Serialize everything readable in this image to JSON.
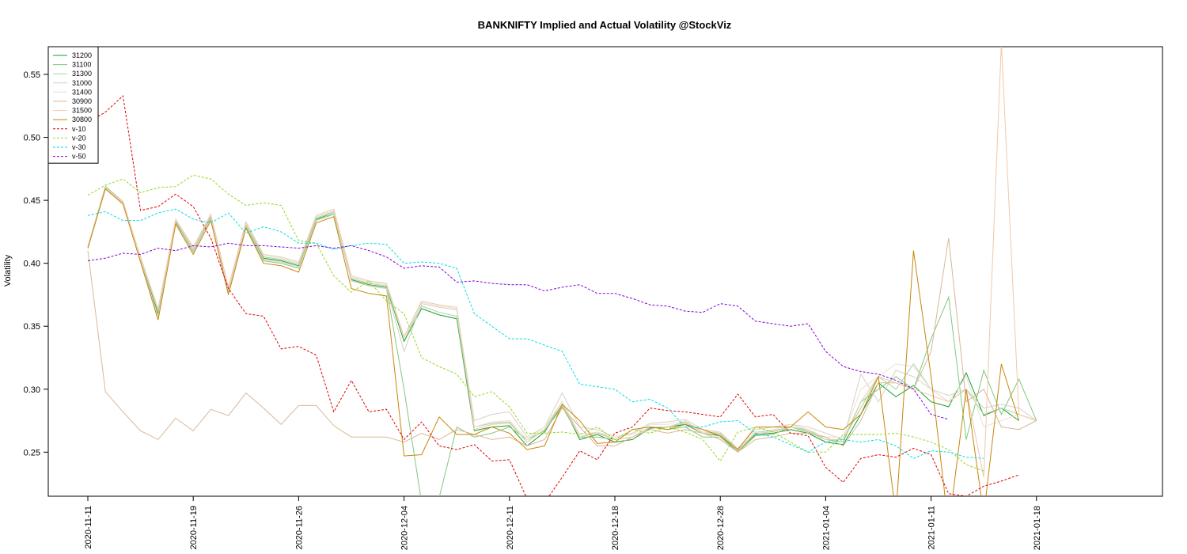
{
  "chart_data": {
    "type": "line",
    "title": "BANKNIFTY Implied and Actual Volatility @StockViz",
    "xlabel": "",
    "ylabel": "Volatility",
    "ylim": [
      0.215,
      0.572
    ],
    "yticks": [
      0.25,
      0.3,
      0.35,
      0.4,
      0.45,
      0.5,
      0.55
    ],
    "ytick_labels": [
      "0.25",
      "0.30",
      "0.35",
      "0.40",
      "0.45",
      "0.50",
      "0.55"
    ],
    "grid": false,
    "legend_position": "top-left",
    "xtick_labels": [
      {
        "label": "2020-11-11",
        "index": 0
      },
      {
        "label": "2020-11-19",
        "index": 6
      },
      {
        "label": "2020-11-26",
        "index": 12
      },
      {
        "label": "2020-12-04",
        "index": 18
      },
      {
        "label": "2020-12-11",
        "index": 24
      },
      {
        "label": "2020-12-18",
        "index": 30
      },
      {
        "label": "2020-12-28",
        "index": 36
      },
      {
        "label": "2021-01-04",
        "index": 42
      },
      {
        "label": "2021-01-11",
        "index": 48
      },
      {
        "label": "2021-01-18",
        "index": 54
      }
    ],
    "n_points": 60,
    "series": [
      {
        "name": "31200",
        "color": "#1a9e2c",
        "dash": "solid",
        "values": [
          0.413,
          0.461,
          0.449,
          0.403,
          0.36,
          0.433,
          0.41,
          0.437,
          0.378,
          0.43,
          0.404,
          0.402,
          0.398,
          0.435,
          0.44,
          0.387,
          0.383,
          0.381,
          0.338,
          0.364,
          0.359,
          0.356,
          0.267,
          0.27,
          0.271,
          0.255,
          0.266,
          0.288,
          0.26,
          0.264,
          0.258,
          0.26,
          0.269,
          0.27,
          0.272,
          0.265,
          0.263,
          0.251,
          0.264,
          0.265,
          0.268,
          0.265,
          0.258,
          0.256,
          0.28,
          0.305,
          0.294,
          0.303,
          0.29,
          0.286,
          0.313,
          0.279,
          0.285,
          0.275
        ]
      },
      {
        "name": "31100",
        "color": "#7fc97f",
        "dash": "solid",
        "values": [
          0.412,
          0.46,
          0.448,
          0.402,
          0.358,
          0.432,
          0.409,
          0.436,
          0.377,
          0.429,
          0.402,
          0.4,
          0.396,
          0.434,
          0.439,
          0.386,
          0.382,
          0.38,
          0.3,
          0.21,
          0.214,
          0.27,
          0.262,
          0.265,
          0.27,
          0.26,
          0.267,
          0.286,
          0.262,
          0.262,
          0.26,
          0.262,
          0.27,
          0.268,
          0.27,
          0.262,
          0.262,
          0.25,
          0.263,
          0.264,
          0.27,
          0.266,
          0.26,
          0.258,
          0.29,
          0.3,
          0.31,
          0.3,
          0.34,
          0.373,
          0.26,
          0.315,
          0.28,
          0.308,
          0.275
        ]
      },
      {
        "name": "31300",
        "color": "#a6d4a0",
        "dash": "solid",
        "values": [
          0.413,
          0.461,
          0.449,
          0.404,
          0.362,
          0.434,
          0.411,
          0.438,
          0.379,
          0.431,
          0.405,
          0.403,
          0.399,
          0.436,
          0.441,
          0.388,
          0.384,
          0.382,
          0.34,
          0.366,
          0.361,
          0.358,
          0.27,
          0.273,
          0.274,
          0.258,
          0.268,
          0.29,
          0.262,
          0.266,
          0.26,
          0.262,
          0.27,
          0.27,
          0.274,
          0.266,
          0.265,
          0.252,
          0.266,
          0.267,
          0.27,
          0.268,
          0.26,
          0.26,
          0.285,
          0.31,
          0.3,
          0.32,
          0.3,
          0.29,
          0.3,
          0.28,
          0.285,
          0.28,
          0.275
        ]
      },
      {
        "name": "31000",
        "color": "#d9d0c4",
        "dash": "solid",
        "values": [
          0.412,
          0.46,
          0.448,
          0.402,
          0.358,
          0.432,
          0.41,
          0.436,
          0.377,
          0.43,
          0.403,
          0.401,
          0.397,
          0.434,
          0.44,
          0.386,
          0.382,
          0.38,
          0.33,
          0.368,
          0.365,
          0.363,
          0.275,
          0.28,
          0.282,
          0.262,
          0.27,
          0.297,
          0.27,
          0.268,
          0.262,
          0.265,
          0.273,
          0.274,
          0.276,
          0.268,
          0.266,
          0.253,
          0.268,
          0.27,
          0.272,
          0.27,
          0.265,
          0.26,
          0.312,
          0.29,
          0.315,
          0.31,
          0.3,
          0.295,
          0.3,
          0.285,
          0.288,
          0.285,
          0.275
        ]
      },
      {
        "name": "31400",
        "color": "#e8e0d8",
        "dash": "solid",
        "values": [
          0.413,
          0.46,
          0.449,
          0.404,
          0.363,
          0.434,
          0.412,
          0.438,
          0.38,
          0.432,
          0.406,
          0.404,
          0.4,
          0.437,
          0.442,
          0.389,
          0.385,
          0.383,
          0.34,
          0.369,
          0.366,
          0.364,
          0.27,
          0.274,
          0.275,
          0.26,
          0.27,
          0.29,
          0.264,
          0.266,
          0.262,
          0.264,
          0.272,
          0.272,
          0.275,
          0.266,
          0.266,
          0.252,
          0.266,
          0.268,
          0.272,
          0.268,
          0.262,
          0.262,
          0.3,
          0.31,
          0.32,
          0.318,
          0.3,
          0.29,
          0.31,
          0.27,
          0.275,
          0.28,
          0.275
        ]
      },
      {
        "name": "30900",
        "color": "#d8b896",
        "dash": "solid",
        "values": [
          0.41,
          0.298,
          0.282,
          0.267,
          0.26,
          0.277,
          0.267,
          0.284,
          0.279,
          0.297,
          0.285,
          0.272,
          0.287,
          0.287,
          0.271,
          0.262,
          0.262,
          0.262,
          0.258,
          0.265,
          0.26,
          0.268,
          0.264,
          0.26,
          0.262,
          0.255,
          0.26,
          0.285,
          0.27,
          0.255,
          0.255,
          0.262,
          0.268,
          0.265,
          0.268,
          0.265,
          0.26,
          0.25,
          0.26,
          0.262,
          0.265,
          0.265,
          0.262,
          0.255,
          0.275,
          0.305,
          0.305,
          0.3,
          0.33,
          0.42,
          0.29,
          0.3,
          0.27,
          0.268,
          0.275
        ]
      },
      {
        "name": "31500",
        "color": "#f0c8a8",
        "dash": "solid",
        "values": [
          0.413,
          0.46,
          0.449,
          0.405,
          0.364,
          0.435,
          0.413,
          0.439,
          0.381,
          0.433,
          0.407,
          0.405,
          0.401,
          0.438,
          0.443,
          0.39,
          0.386,
          0.384,
          0.342,
          0.37,
          0.367,
          0.365,
          0.268,
          0.272,
          0.273,
          0.258,
          0.268,
          0.288,
          0.262,
          0.265,
          0.26,
          0.262,
          0.27,
          0.27,
          0.273,
          0.265,
          0.264,
          0.251,
          0.265,
          0.266,
          0.27,
          0.267,
          0.26,
          0.26,
          0.29,
          0.31,
          0.305,
          0.3,
          0.295,
          0.29,
          0.3,
          0.23,
          0.575,
          0.28,
          0.275
        ]
      },
      {
        "name": "30800",
        "color": "#c8860a",
        "dash": "solid",
        "values": [
          0.412,
          0.459,
          0.447,
          0.401,
          0.355,
          0.431,
          0.407,
          0.434,
          0.375,
          0.428,
          0.4,
          0.398,
          0.393,
          0.432,
          0.437,
          0.38,
          0.376,
          0.374,
          0.247,
          0.248,
          0.278,
          0.264,
          0.264,
          0.27,
          0.265,
          0.252,
          0.255,
          0.288,
          0.275,
          0.257,
          0.258,
          0.268,
          0.27,
          0.268,
          0.272,
          0.268,
          0.263,
          0.252,
          0.27,
          0.27,
          0.27,
          0.282,
          0.27,
          0.268,
          0.28,
          0.31,
          0.2,
          0.41,
          0.31,
          0.19,
          0.3,
          0.2,
          0.32,
          0.275
        ]
      },
      {
        "name": "v-10",
        "color": "#e00000",
        "dash": "dashed",
        "values": [
          0.512,
          0.52,
          0.533,
          0.442,
          0.445,
          0.455,
          0.445,
          0.42,
          0.38,
          0.36,
          0.358,
          0.332,
          0.334,
          0.327,
          0.282,
          0.307,
          0.282,
          0.284,
          0.26,
          0.274,
          0.255,
          0.252,
          0.256,
          0.243,
          0.244,
          0.213,
          0.21,
          0.23,
          0.251,
          0.244,
          0.265,
          0.27,
          0.285,
          0.283,
          0.282,
          0.28,
          0.278,
          0.296,
          0.278,
          0.28,
          0.265,
          0.263,
          0.238,
          0.226,
          0.245,
          0.248,
          0.246,
          0.253,
          0.248,
          0.217,
          0.215,
          0.223,
          0.227,
          0.232
        ]
      },
      {
        "name": "v-20",
        "color": "#90d820",
        "dash": "dashed",
        "values": [
          0.454,
          0.462,
          0.467,
          0.456,
          0.46,
          0.461,
          0.47,
          0.467,
          0.455,
          0.446,
          0.448,
          0.446,
          0.418,
          0.416,
          0.39,
          0.377,
          0.386,
          0.37,
          0.36,
          0.325,
          0.318,
          0.312,
          0.294,
          0.298,
          0.286,
          0.265,
          0.265,
          0.266,
          0.264,
          0.27,
          0.26,
          0.268,
          0.265,
          0.27,
          0.266,
          0.26,
          0.243,
          0.266,
          0.27,
          0.266,
          0.258,
          0.25,
          0.25,
          0.264,
          0.264,
          0.264,
          0.265,
          0.262,
          0.258,
          0.252,
          0.24,
          0.235
        ]
      },
      {
        "name": "v-30",
        "color": "#00dce8",
        "dash": "dashed",
        "values": [
          0.438,
          0.441,
          0.434,
          0.434,
          0.44,
          0.443,
          0.435,
          0.432,
          0.44,
          0.424,
          0.429,
          0.425,
          0.416,
          0.416,
          0.411,
          0.414,
          0.416,
          0.415,
          0.4,
          0.401,
          0.4,
          0.396,
          0.36,
          0.35,
          0.34,
          0.34,
          0.335,
          0.33,
          0.304,
          0.302,
          0.3,
          0.29,
          0.292,
          0.285,
          0.27,
          0.27,
          0.274,
          0.275,
          0.265,
          0.262,
          0.256,
          0.25,
          0.258,
          0.26,
          0.258,
          0.26,
          0.255,
          0.245,
          0.251,
          0.25,
          0.246,
          0.245
        ]
      },
      {
        "name": "v-50",
        "color": "#8000d8",
        "dash": "dashed",
        "values": [
          0.402,
          0.404,
          0.408,
          0.407,
          0.412,
          0.41,
          0.414,
          0.413,
          0.416,
          0.414,
          0.414,
          0.413,
          0.412,
          0.414,
          0.412,
          0.414,
          0.41,
          0.405,
          0.396,
          0.398,
          0.397,
          0.385,
          0.386,
          0.384,
          0.383,
          0.383,
          0.378,
          0.381,
          0.383,
          0.376,
          0.376,
          0.372,
          0.367,
          0.366,
          0.362,
          0.361,
          0.368,
          0.366,
          0.354,
          0.352,
          0.35,
          0.352,
          0.33,
          0.318,
          0.314,
          0.312,
          0.307,
          0.3,
          0.28,
          0.276
        ]
      }
    ]
  }
}
